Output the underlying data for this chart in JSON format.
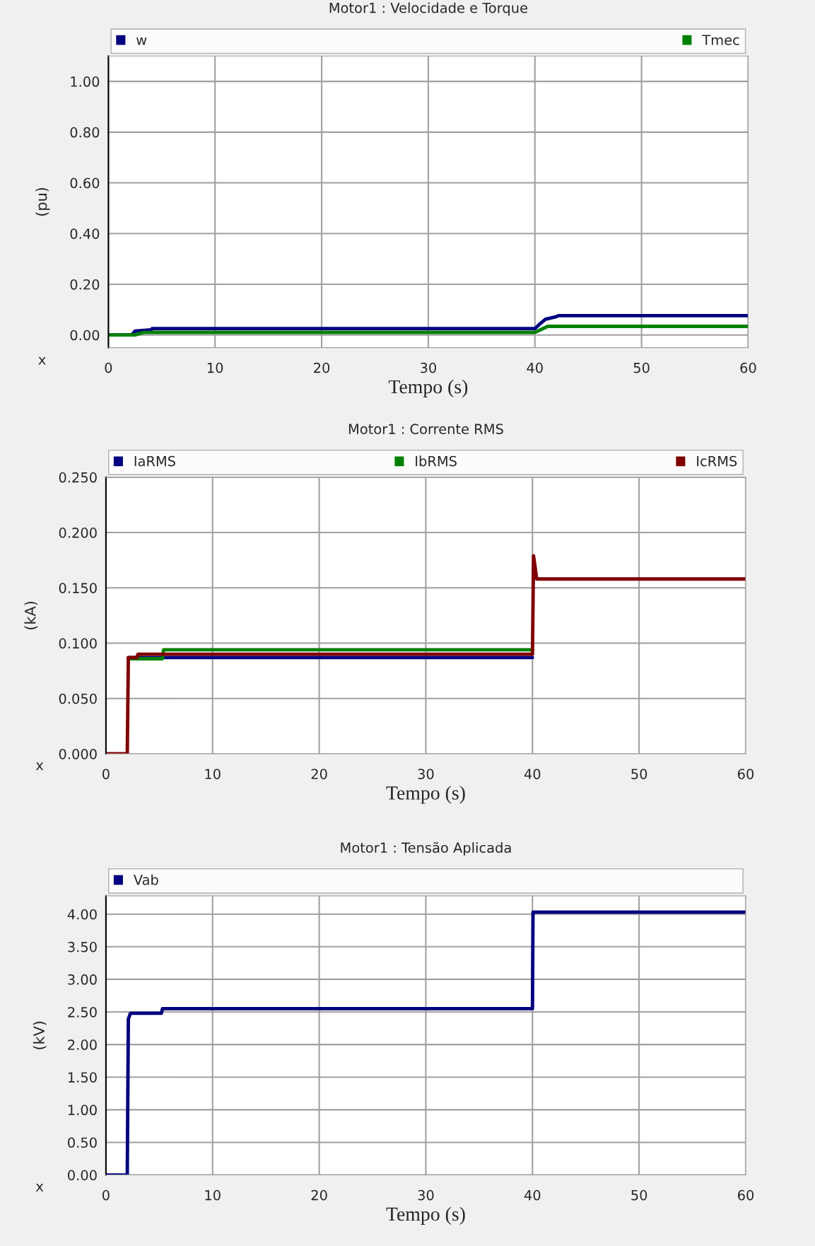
{
  "chart_data": [
    {
      "type": "line",
      "title": "Motor1 : Velocidade e Torque",
      "xlabel": "Tempo (s)",
      "ylabel": "(pu)",
      "xlim": [
        0,
        60
      ],
      "xticks": [
        0,
        10,
        20,
        30,
        40,
        50,
        60
      ],
      "ylim": [
        -0.05,
        1.1
      ],
      "yticks": [
        {
          "value": 0,
          "label": "0.00"
        },
        {
          "value": 0.2,
          "label": "0.20"
        },
        {
          "value": 0.4,
          "label": "0.40"
        },
        {
          "value": 0.6,
          "label": "0.60"
        },
        {
          "value": 0.8,
          "label": "0.80"
        },
        {
          "value": 1.0,
          "label": "1.00"
        }
      ],
      "grid": true,
      "legend": "top",
      "annotations": [
        "x"
      ],
      "series": [
        {
          "name": "w",
          "color": "#000080",
          "x": [
            0,
            2.2,
            2.5,
            4,
            4.1,
            40,
            40.5,
            41,
            42,
            42.2,
            60
          ],
          "values": [
            0,
            0,
            0.015,
            0.02,
            0.025,
            0.025,
            0.045,
            0.062,
            0.072,
            0.076,
            0.076
          ]
        },
        {
          "name": "Tmec",
          "color": "#008000",
          "x": [
            0,
            2.5,
            3.3,
            40,
            40.5,
            41.2,
            60
          ],
          "values": [
            0,
            0,
            0.01,
            0.01,
            0.02,
            0.034,
            0.034
          ]
        }
      ]
    },
    {
      "type": "line",
      "title": "Motor1 : Corrente RMS",
      "xlabel": "Tempo (s)",
      "ylabel": "(kA)",
      "xlim": [
        0,
        60
      ],
      "xticks": [
        0,
        10,
        20,
        30,
        40,
        50,
        60
      ],
      "ylim": [
        0,
        0.25
      ],
      "yticks": [
        {
          "value": 0,
          "label": "0.000"
        },
        {
          "value": 0.05,
          "label": "0.050"
        },
        {
          "value": 0.1,
          "label": "0.100"
        },
        {
          "value": 0.15,
          "label": "0.150"
        },
        {
          "value": 0.2,
          "label": "0.200"
        },
        {
          "value": 0.25,
          "label": "0.250"
        }
      ],
      "grid": true,
      "legend": "top",
      "annotations": [
        "x"
      ],
      "series": [
        {
          "name": "IaRMS",
          "color": "#000080",
          "x": [
            2.1,
            40
          ],
          "values": [
            0.087,
            0.087
          ]
        },
        {
          "name": "IbRMS",
          "color": "#008000",
          "x": [
            2.1,
            5.3,
            5.4,
            40
          ],
          "values": [
            0.086,
            0.086,
            0.094,
            0.094
          ]
        },
        {
          "name": "IcRMS",
          "color": "#800000",
          "x": [
            0,
            2,
            2.1,
            2.9,
            3,
            40,
            40.1,
            40.4,
            60
          ],
          "values": [
            0,
            0,
            0.087,
            0.087,
            0.09,
            0.09,
            0.179,
            0.158,
            0.158
          ]
        }
      ]
    },
    {
      "type": "line",
      "title": "Motor1 : Tensão Aplicada",
      "xlabel": "Tempo (s)",
      "ylabel": "(kV)",
      "xlim": [
        0,
        60
      ],
      "xticks": [
        0,
        10,
        20,
        30,
        40,
        50,
        60
      ],
      "ylim": [
        0,
        4.28
      ],
      "yticks": [
        {
          "value": 0,
          "label": "0.00"
        },
        {
          "value": 0.5,
          "label": "0.50"
        },
        {
          "value": 1.0,
          "label": "1.00"
        },
        {
          "value": 1.5,
          "label": "1.50"
        },
        {
          "value": 2.0,
          "label": "2.00"
        },
        {
          "value": 2.5,
          "label": "2.50"
        },
        {
          "value": 3.0,
          "label": "3.00"
        },
        {
          "value": 3.5,
          "label": "3.50"
        },
        {
          "value": 4.0,
          "label": "4.00"
        }
      ],
      "grid": true,
      "legend": "top",
      "annotations": [
        "x"
      ],
      "series": [
        {
          "name": "Vab",
          "color": "#000080",
          "x": [
            0,
            2,
            2.1,
            2.3,
            5.2,
            5.3,
            40,
            40.05,
            60
          ],
          "values": [
            0,
            0,
            2.39,
            2.48,
            2.48,
            2.55,
            2.55,
            4.03,
            4.03
          ]
        }
      ]
    }
  ]
}
